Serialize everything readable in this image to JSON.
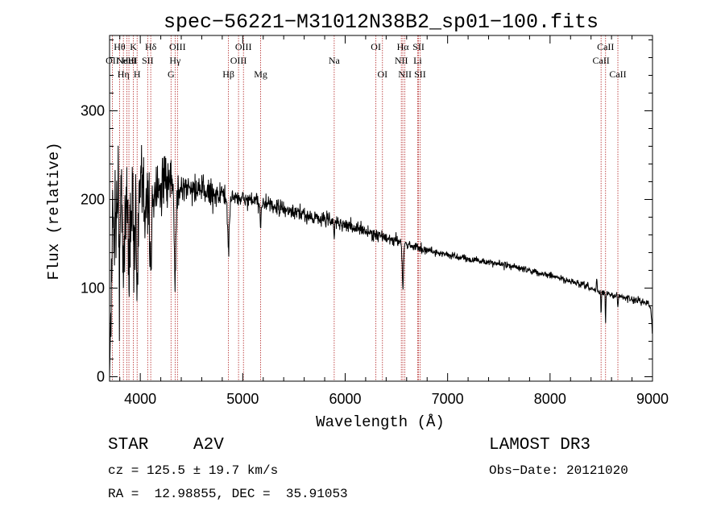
{
  "chart_data": {
    "type": "line",
    "title": "spec−56221−M31012N38B2_sp01−100.fits",
    "xlabel": "Wavelength (Å)",
    "ylabel": "Flux (relative)",
    "xlim": [
      3700,
      9000
    ],
    "ylim": [
      -5,
      385
    ],
    "xticks": [
      4000,
      5000,
      6000,
      7000,
      8000,
      9000
    ],
    "yticks": [
      0,
      100,
      200,
      300
    ],
    "grid": false,
    "colors": {
      "spectrum": "#000000",
      "lines": "#b22222",
      "text": "#000000"
    },
    "continuum": [
      [
        3700,
        0
      ],
      [
        3710,
        60
      ],
      [
        3725,
        150
      ],
      [
        3745,
        185
      ],
      [
        3780,
        195
      ],
      [
        3850,
        198
      ],
      [
        3950,
        200
      ],
      [
        4050,
        205
      ],
      [
        4150,
        212
      ],
      [
        4250,
        216
      ],
      [
        4350,
        214
      ],
      [
        4500,
        212
      ],
      [
        4700,
        207
      ],
      [
        4900,
        203
      ],
      [
        5100,
        198
      ],
      [
        5300,
        192
      ],
      [
        5500,
        185
      ],
      [
        5700,
        180
      ],
      [
        5900,
        175
      ],
      [
        6100,
        168
      ],
      [
        6300,
        160
      ],
      [
        6500,
        153
      ],
      [
        6700,
        146
      ],
      [
        6900,
        140
      ],
      [
        7100,
        135
      ],
      [
        7300,
        131
      ],
      [
        7500,
        127
      ],
      [
        7700,
        123
      ],
      [
        7900,
        117
      ],
      [
        8100,
        111
      ],
      [
        8300,
        104
      ],
      [
        8500,
        95
      ],
      [
        8700,
        90
      ],
      [
        8850,
        86
      ],
      [
        8950,
        84
      ],
      [
        8985,
        75
      ],
      [
        9000,
        45
      ]
    ],
    "noise": [
      [
        3700,
        60
      ],
      [
        3800,
        70
      ],
      [
        3950,
        60
      ],
      [
        4100,
        45
      ],
      [
        4300,
        25
      ],
      [
        4500,
        18
      ],
      [
        5000,
        9
      ],
      [
        6000,
        8
      ],
      [
        7000,
        4
      ],
      [
        8000,
        3.5
      ],
      [
        9000,
        4
      ]
    ],
    "absorption": [
      {
        "wave": 3798,
        "depth": 60,
        "width": 6
      },
      {
        "wave": 3835,
        "depth": 70,
        "width": 7
      },
      {
        "wave": 3889,
        "depth": 80,
        "width": 8
      },
      {
        "wave": 3933,
        "depth": 50,
        "width": 5
      },
      {
        "wave": 3970,
        "depth": 95,
        "width": 9
      },
      {
        "wave": 4101,
        "depth": 90,
        "width": 10
      },
      {
        "wave": 4340,
        "depth": 100,
        "width": 9
      },
      {
        "wave": 4861,
        "depth": 60,
        "width": 9
      },
      {
        "wave": 5175,
        "depth": 25,
        "width": 4
      },
      {
        "wave": 5893,
        "depth": 25,
        "width": 3
      },
      {
        "wave": 6563,
        "depth": 50,
        "width": 6
      },
      {
        "wave": 8498,
        "depth": 25,
        "width": 3
      },
      {
        "wave": 8542,
        "depth": 30,
        "width": 3
      },
      {
        "wave": 8662,
        "depth": 15,
        "width": 3
      }
    ],
    "emission": [
      {
        "wave": 8455,
        "height": 15,
        "width": 3
      }
    ],
    "lines": [
      {
        "wave": 3727,
        "label": "OII",
        "row": 1
      },
      {
        "wave": 3798,
        "label": "Hθ",
        "row": 0
      },
      {
        "wave": 3835,
        "label": "Hη",
        "row": 2
      },
      {
        "wave": 3869,
        "label": "NeIII",
        "row": 1
      },
      {
        "wave": 3889,
        "label": "HeI",
        "row": 1
      },
      {
        "wave": 3933,
        "label": "K",
        "row": 0
      },
      {
        "wave": 3969,
        "label": "H",
        "row": 2
      },
      {
        "wave": 4072,
        "label": "SII",
        "row": 1
      },
      {
        "wave": 4102,
        "label": "Hδ",
        "row": 0
      },
      {
        "wave": 4300,
        "label": "G",
        "row": 2
      },
      {
        "wave": 4340,
        "label": "Hγ",
        "row": 1
      },
      {
        "wave": 4363,
        "label": "OIII",
        "row": 0
      },
      {
        "wave": 4861,
        "label": "Hβ",
        "row": 2
      },
      {
        "wave": 4959,
        "label": "OIII",
        "row": 1
      },
      {
        "wave": 5007,
        "label": "OIII",
        "row": 0
      },
      {
        "wave": 5175,
        "label": "Mg",
        "row": 2
      },
      {
        "wave": 5893,
        "label": "Na",
        "row": 1
      },
      {
        "wave": 6300,
        "label": "OI",
        "row": 0
      },
      {
        "wave": 6364,
        "label": "OI",
        "row": 2
      },
      {
        "wave": 6548,
        "label": "NII",
        "row": 1
      },
      {
        "wave": 6563,
        "label": "Hα",
        "row": 0
      },
      {
        "wave": 6583,
        "label": "NII",
        "row": 2
      },
      {
        "wave": 6707,
        "label": "Li",
        "row": 1
      },
      {
        "wave": 6716,
        "label": "SII",
        "row": 0
      },
      {
        "wave": 6731,
        "label": "SII",
        "row": 2
      },
      {
        "wave": 8498,
        "label": "CaII",
        "row": 1
      },
      {
        "wave": 8542,
        "label": "CaII",
        "row": 0
      },
      {
        "wave": 8662,
        "label": "CaII",
        "row": 2
      }
    ]
  },
  "info": {
    "class": "STAR",
    "subclass": "A2V",
    "survey": "LAMOST DR3",
    "cz": "cz = 125.5 ± 19.7 km/s",
    "obs_date": "Obs−Date: 20121020",
    "coords": "RA =  12.98855, DEC =  35.91053"
  }
}
